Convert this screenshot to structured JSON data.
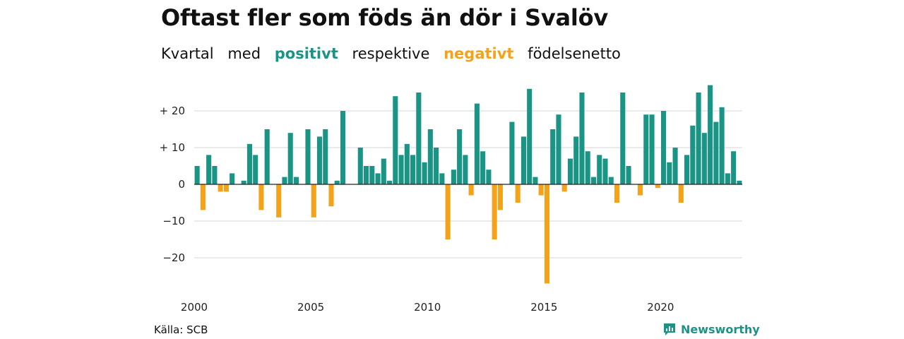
{
  "title": "Oftast fler som föds än dör i Svalöv",
  "subtitle": {
    "w1": "Kvartal",
    "w2": "med",
    "positive": "positivt",
    "w3": "respektive",
    "negative": "negativt",
    "w4": "födelsenetto"
  },
  "source": "Källa: SCB",
  "brand": "Newsworthy",
  "colors": {
    "positive": "#1a9585",
    "negative": "#f5a21b",
    "grid": "#dddddd"
  },
  "chart_data": {
    "type": "bar",
    "x_unit": "quarter",
    "start": "2000-Q1",
    "ylim": [
      -28,
      28
    ],
    "yticks": [
      20,
      10,
      0,
      -10,
      -20
    ],
    "ytick_labels": [
      "+ 20",
      "+ 10",
      "0",
      "−10",
      "−20"
    ],
    "xticks": [
      2000,
      2005,
      2010,
      2015,
      2020
    ],
    "grid": true,
    "values": [
      5,
      -7,
      8,
      5,
      -2,
      -2,
      3,
      0,
      1,
      11,
      8,
      -7,
      15,
      0,
      -9,
      2,
      14,
      2,
      0,
      15,
      -9,
      13,
      15,
      -6,
      1,
      20,
      0,
      0,
      10,
      5,
      5,
      3,
      7,
      1,
      24,
      8,
      11,
      8,
      25,
      6,
      15,
      10,
      3,
      -15,
      4,
      15,
      8,
      -3,
      22,
      9,
      4,
      -15,
      -7,
      0,
      17,
      -5,
      13,
      26,
      2,
      -3,
      -27,
      15,
      19,
      -2,
      7,
      13,
      25,
      9,
      2,
      8,
      7,
      2,
      -5,
      25,
      5,
      0,
      -3,
      19,
      19,
      -1,
      20,
      6,
      10,
      -5,
      8,
      16,
      25,
      14,
      27,
      17,
      21,
      3,
      9,
      1
    ]
  }
}
